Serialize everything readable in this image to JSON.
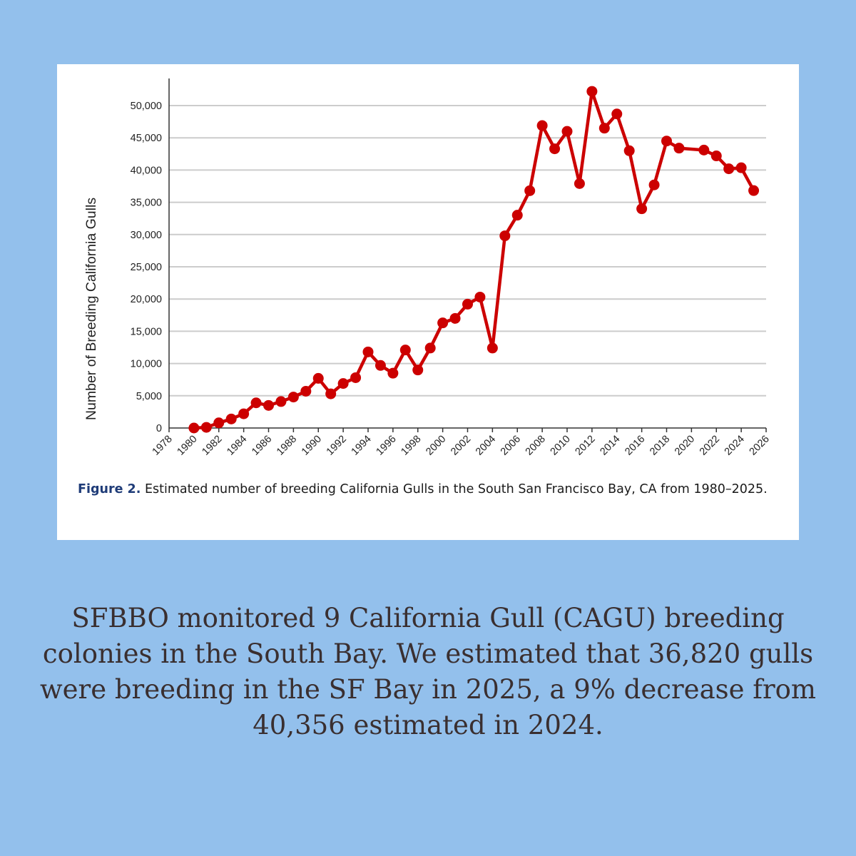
{
  "caption": {
    "label": "Figure 2.",
    "text": "Estimated number of breeding California Gulls in the South San Francisco Bay, CA from 1980–2025."
  },
  "summary": "SFBBO monitored 9 California Gull (CAGU) breeding colonies in the South Bay. We estimated that 36,820 gulls were breeding in the SF Bay in 2025, a 9% decrease from 40,356 estimated in 2024.",
  "chart_data": {
    "type": "line",
    "title": "",
    "xlabel": "",
    "ylabel": "Number of Breeding California Gulls",
    "xlim": [
      1978,
      2026
    ],
    "ylim": [
      0,
      50000
    ],
    "x_ticks": [
      "1978",
      "1980",
      "1982",
      "1984",
      "1986",
      "1988",
      "1990",
      "1992",
      "1994",
      "1996",
      "1998",
      "2000",
      "2002",
      "2004",
      "2006",
      "2008",
      "2010",
      "2012",
      "2014",
      "2016",
      "2018",
      "2020",
      "2022",
      "2024",
      "2026"
    ],
    "y_ticks": [
      "0",
      "5,000",
      "10,000",
      "15,000",
      "20,000",
      "25,000",
      "30,000",
      "35,000",
      "40,000",
      "45,000",
      "50,000"
    ],
    "grid": "horizontal",
    "series": [
      {
        "color": "#cc0000",
        "points": [
          [
            1980,
            0
          ],
          [
            1981,
            100
          ],
          [
            1982,
            800
          ],
          [
            1983,
            1400
          ],
          [
            1984,
            2200
          ],
          [
            1985,
            3900
          ],
          [
            1986,
            3500
          ],
          [
            1987,
            4100
          ],
          [
            1988,
            4800
          ],
          [
            1989,
            5700
          ],
          [
            1990,
            7700
          ],
          [
            1991,
            5300
          ],
          [
            1992,
            6900
          ],
          [
            1993,
            7800
          ],
          [
            1994,
            11800
          ],
          [
            1995,
            9700
          ],
          [
            1996,
            8500
          ],
          [
            1997,
            12100
          ],
          [
            1998,
            9000
          ],
          [
            1999,
            12400
          ],
          [
            2000,
            16300
          ],
          [
            2001,
            17000
          ],
          [
            2002,
            19200
          ],
          [
            2003,
            20300
          ],
          [
            2004,
            12400
          ],
          [
            2005,
            29800
          ],
          [
            2006,
            33000
          ],
          [
            2007,
            36800
          ],
          [
            2008,
            46900
          ],
          [
            2009,
            43300
          ],
          [
            2010,
            46000
          ],
          [
            2011,
            37900
          ],
          [
            2012,
            52200
          ],
          [
            2013,
            46500
          ],
          [
            2014,
            48700
          ],
          [
            2015,
            43000
          ],
          [
            2016,
            34000
          ],
          [
            2017,
            37700
          ],
          [
            2018,
            44500
          ],
          [
            2019,
            43400
          ],
          [
            2021,
            43100
          ],
          [
            2022,
            42200
          ],
          [
            2023,
            40200
          ],
          [
            2024,
            40356
          ],
          [
            2025,
            36820
          ]
        ]
      }
    ]
  }
}
